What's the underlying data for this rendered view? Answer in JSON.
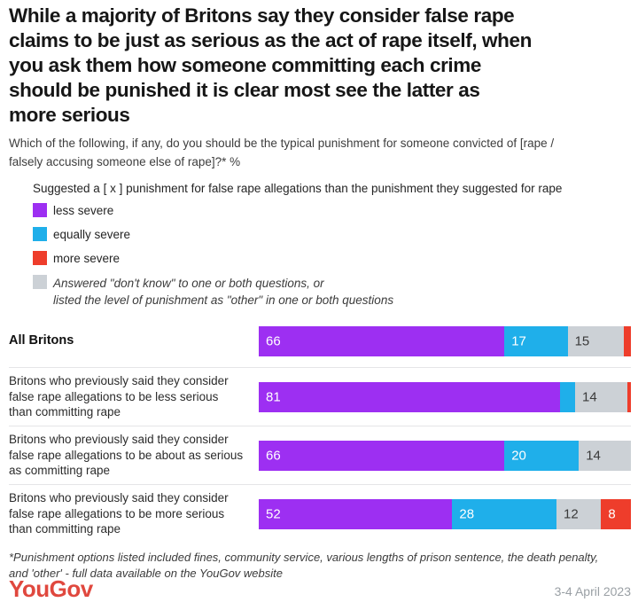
{
  "title": "While a majority of Britons say they consider false rape\nclaims to be just as serious as the act of rape itself, when\nyou ask them how someone committing each crime\nshould be punished it is clear most see the latter as\nmore serious",
  "subtitle": "Which of the following, if any, do you should be the typical punishment for someone convicted of [rape /\nfalsely accusing someone else of rape]?* %",
  "legend": {
    "header": "Suggested a [ x ] punishment for false rape allegations than the punishment they suggested for rape",
    "items": [
      {
        "series": "less_severe",
        "label": "less severe",
        "color": "#9d2ff2"
      },
      {
        "series": "equally_severe",
        "label": "equally severe",
        "color": "#1fafea"
      },
      {
        "series": "more_severe",
        "label": "more severe",
        "color": "#ee3d2b"
      },
      {
        "series": "dont_know_other",
        "label": "Answered \"don't know\" to one or both questions, or\nlisted the level of punishment as \"other\" in one or both questions",
        "color": "#ccd1d6"
      }
    ]
  },
  "chart_data": {
    "type": "bar",
    "orientation": "horizontal",
    "stacked": true,
    "unit": "%",
    "xlim": [
      0,
      100
    ],
    "grid": false,
    "colors": {
      "less_severe": "#9d2ff2",
      "equally_severe": "#1fafea",
      "dont_know_other": "#ccd1d6",
      "more_severe": "#ee3d2b"
    },
    "rows": [
      {
        "label": "All Britons",
        "bold": true,
        "segments": [
          {
            "series": "less_severe",
            "value": 66,
            "labeled": true
          },
          {
            "series": "equally_severe",
            "value": 17,
            "labeled": true
          },
          {
            "series": "dont_know_other",
            "value": 15,
            "labeled": true
          },
          {
            "series": "more_severe",
            "value": 2,
            "labeled": false
          }
        ]
      },
      {
        "label": "Britons who previously said they consider false rape allegations to be less serious than committing rape",
        "bold": false,
        "segments": [
          {
            "series": "less_severe",
            "value": 81,
            "labeled": true
          },
          {
            "series": "equally_severe",
            "value": 4,
            "labeled": false
          },
          {
            "series": "dont_know_other",
            "value": 14,
            "labeled": true
          },
          {
            "series": "more_severe",
            "value": 1,
            "labeled": false
          }
        ]
      },
      {
        "label": "Britons who previously said they consider false rape allegations to be about as serious as committing rape",
        "bold": false,
        "segments": [
          {
            "series": "less_severe",
            "value": 66,
            "labeled": true
          },
          {
            "series": "equally_severe",
            "value": 20,
            "labeled": true
          },
          {
            "series": "dont_know_other",
            "value": 14,
            "labeled": true
          }
        ]
      },
      {
        "label": "Britons who previously said they consider false rape allegations to be more serious than committing rape",
        "bold": false,
        "segments": [
          {
            "series": "less_severe",
            "value": 52,
            "labeled": true
          },
          {
            "series": "equally_severe",
            "value": 28,
            "labeled": true
          },
          {
            "series": "dont_know_other",
            "value": 12,
            "labeled": true
          },
          {
            "series": "more_severe",
            "value": 8,
            "labeled": true
          }
        ]
      }
    ]
  },
  "footnote": "*Punishment options listed included fines, community service, various lengths of prison sentence, the death penalty,\nand 'other' - full data available on the YouGov website",
  "brand": {
    "logo": "YouGov",
    "color": "#e0483e"
  },
  "date": "3-4 April 2023"
}
